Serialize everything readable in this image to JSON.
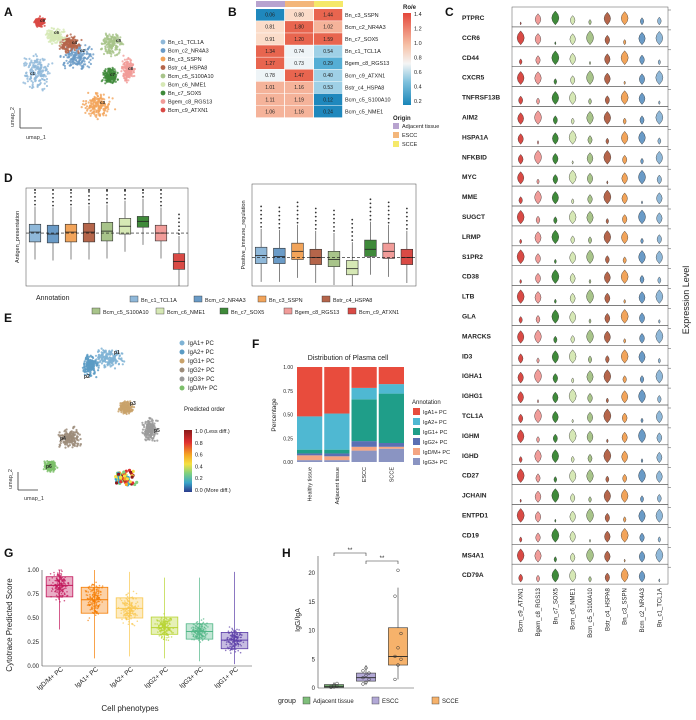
{
  "panels": {
    "A": {
      "letter": "A",
      "axis_x": "umap_1",
      "axis_y": "umap_2",
      "legend": [
        "Bn_c1_TCL1A",
        "Bcm_c2_NR4A3",
        "Bn_c3_SSPN",
        "Bstr_c4_HSPA8",
        "Bcm_c5_S100A10",
        "Bcm_c6_NME1",
        "Bn_c7_SOX5",
        "Bgem_c8_RGS13",
        "Bcm_c9_ATXN1"
      ],
      "legend_colors": [
        "#8fb8d9",
        "#6a9bc7",
        "#f2a45a",
        "#b5654a",
        "#a8c48a",
        "#d6e8b5",
        "#3f8a3a",
        "#f19c99",
        "#d94a45"
      ],
      "cluster_labels": [
        "c1",
        "c2",
        "c3",
        "c4",
        "c5",
        "c6",
        "c7",
        "c8",
        "c9"
      ]
    },
    "B": {
      "letter": "B",
      "rows": [
        {
          "label": "Bn_c3_SSPN",
          "values": [
            "0.06",
            "0.80",
            "1.44"
          ]
        },
        {
          "label": "Bcm_c2_NR4A3",
          "values": [
            "0.81",
            "1.80",
            "1.02"
          ]
        },
        {
          "label": "Bn_c7_SOX5",
          "values": [
            "0.91",
            "1.20",
            "1.59"
          ]
        },
        {
          "label": "Bn_c1_TCL1A",
          "values": [
            "1.34",
            "0.74",
            "0.54"
          ]
        },
        {
          "label": "Bgem_c8_RGS13",
          "values": [
            "1.27",
            "0.73",
            "0.29"
          ]
        },
        {
          "label": "Bcm_c9_ATXN1",
          "values": [
            "0.78",
            "1.47",
            "0.40"
          ]
        },
        {
          "label": "Bstr_c4_HSPA8",
          "values": [
            "1.01",
            "1.16",
            "0.53"
          ]
        },
        {
          "label": "Bcm_c5_S100A10",
          "values": [
            "1.11",
            "1.19",
            "0.12"
          ]
        },
        {
          "label": "Bcm_c5_NME1",
          "values": [
            "1.06",
            "1.16",
            "0.24"
          ]
        }
      ],
      "origin_colors": [
        "#b8a3cf",
        "#f3b67a",
        "#f5e96a"
      ],
      "legend_title_1": "Ro/e",
      "legend_ticks": [
        "1.4",
        "1.2",
        "1.0",
        "0.8",
        "0.6",
        "0.4",
        "0.2"
      ],
      "legend_title_2": "Origin",
      "legend_title_3": "Origin",
      "origin_legend": [
        "Adjacent tissue",
        "ESCC",
        "SCCE"
      ]
    },
    "C": {
      "letter": "C",
      "genes": [
        "PTPRC",
        "CCR6",
        "CD44",
        "CXCR5",
        "TNFRSF13B",
        "AIM2",
        "HSPA1A",
        "NFKBID",
        "MYC",
        "MME",
        "SUGCT",
        "LRMP",
        "S1PR2",
        "CD38",
        "LTB",
        "GLA",
        "MARCKS",
        "ID3",
        "IGHA1",
        "IGHG1",
        "TCL1A",
        "IGHM",
        "IGHD",
        "CD27",
        "JCHAIN",
        "ENTPD1",
        "CD19",
        "MS4A1",
        "CD79A"
      ],
      "clusters": [
        "Bcm_c9_ATXN1",
        "Bgem_c8_RGS13",
        "Bn_c7_SOX5",
        "Bcm_c6_NME1",
        "Bcm_c5_S100A10",
        "Bstr_c4_HSPA8",
        "Bn_c3_SSPN",
        "Bcm_c2_NR4A3",
        "Bn_c1_TCL1A"
      ],
      "cluster_colors": [
        "#d94a45",
        "#f19c99",
        "#3f8a3a",
        "#d6e8b5",
        "#a8c48a",
        "#b5654a",
        "#f2a45a",
        "#6a9bc7",
        "#8fb8d9"
      ],
      "ylabel": "Expression Level"
    },
    "D": {
      "letter": "D",
      "left_ylabel": "Antigen_presentation",
      "right_ylabel": "Positive_immune_regulation",
      "xlabel": "Annotation",
      "legend_row1": [
        "Bn_c1_TCL1A",
        "Bcm_c2_NR4A3",
        "Bn_c3_SSPN",
        "Bstr_c4_HSPA8"
      ],
      "legend_row2": [
        "Bcm_c5_S100A10",
        "Bcm_c6_NME1",
        "Bn_c7_SOX5",
        "Bgem_c8_RGS13",
        "Bcm_c9_ATXN1"
      ]
    },
    "E": {
      "letter": "E",
      "legend": [
        "IgA1+ PC",
        "IgA2+ PC",
        "IgG1+ PC",
        "IgG2+ PC",
        "IgG3+ PC",
        "IgD/M+ PC"
      ],
      "legend_colors": [
        "#7fb3d5",
        "#5a9bc4",
        "#c9a26a",
        "#9c8c7a",
        "#9a9a9a",
        "#7cbf6a"
      ],
      "cluster_labels": [
        "p1",
        "p2",
        "p3",
        "p4",
        "p5",
        "p6"
      ],
      "axis_x": "umap_1",
      "axis_y": "umap_2",
      "cbar_title": "Predicted order",
      "cbar_labels": [
        "1.0 (Less diff.)",
        "0.8",
        "0.6",
        "0.4",
        "0.2",
        "0.0 (More diff.)"
      ]
    },
    "F": {
      "letter": "F",
      "title": "Distribution of Plasma cell",
      "ylabel": "Percentage",
      "yticks": [
        "1.00",
        "0.75",
        "0.50",
        "0.25",
        "0.00"
      ],
      "categories": [
        "Healthy tissue",
        "Adjacent tissue",
        "ESCC",
        "SCCE"
      ],
      "legend_title": "Annotation",
      "legend": [
        "IgA1+ PC",
        "IgA2+ PC",
        "IgG1+ PC",
        "IgG2+ PC",
        "IgD/M+ PC",
        "IgG3+ PC"
      ],
      "legend_colors": [
        "#e84c3d",
        "#4fb8d2",
        "#1f9e89",
        "#5a6fb3",
        "#f4a582",
        "#8a94c2"
      ]
    },
    "G": {
      "letter": "G",
      "ylabel": "Cytotrace Predicted Score",
      "xlabel": "Cell phenotypes",
      "yticks": [
        "1.00",
        "0.75",
        "0.50",
        "0.25",
        "0.00"
      ],
      "categories": [
        "IgD/M+ PC",
        "IgA1+ PC",
        "IgA2+ PC",
        "IgG2+ PC",
        "IgG3+ PC",
        "IgG1+ PC"
      ],
      "colors": [
        "#c2185b",
        "#f57c00",
        "#f9c74f",
        "#b8d432",
        "#52b788",
        "#5c3ea8"
      ]
    },
    "H": {
      "letter": "H",
      "ylabel": "IgG/IgA",
      "yticks": [
        "20",
        "15",
        "10",
        "5",
        "0"
      ],
      "sig1": "**",
      "sig2": "**",
      "legend_title": "group",
      "legend": [
        "Adjacent tissue",
        "ESCC",
        "SCCE"
      ],
      "legend_colors": [
        "#7fbf7b",
        "#b2a8d6",
        "#f6b26b"
      ]
    }
  },
  "chart_data": [
    {
      "type": "bar",
      "title": "Distribution of Plasma cell",
      "xlabel": "",
      "ylabel": "Percentage",
      "categories": [
        "Healthy tissue",
        "Adjacent tissue",
        "ESCC",
        "SCCE"
      ],
      "ylim": [
        0,
        1
      ],
      "stacked": true,
      "series": [
        {
          "name": "IgG3+ PC",
          "values": [
            0.02,
            0.02,
            0.12,
            0.14
          ]
        },
        {
          "name": "IgD/M+ PC",
          "values": [
            0.05,
            0.04,
            0.04,
            0.02
          ]
        },
        {
          "name": "IgG2+ PC",
          "values": [
            0.02,
            0.03,
            0.06,
            0.04
          ]
        },
        {
          "name": "IgG1+ PC",
          "values": [
            0.04,
            0.04,
            0.44,
            0.52
          ]
        },
        {
          "name": "IgA2+ PC",
          "values": [
            0.35,
            0.38,
            0.12,
            0.1
          ]
        },
        {
          "name": "IgA1+ PC",
          "values": [
            0.52,
            0.49,
            0.22,
            0.18
          ]
        }
      ]
    },
    {
      "type": "box",
      "title": "",
      "xlabel": "Cell phenotypes",
      "ylabel": "Cytotrace Predicted Score",
      "categories": [
        "IgD/M+ PC",
        "IgA1+ PC",
        "IgA2+ PC",
        "IgG2+ PC",
        "IgG3+ PC",
        "IgG1+ PC"
      ],
      "ylim": [
        0,
        1
      ],
      "q1": [
        0.72,
        0.55,
        0.5,
        0.33,
        0.28,
        0.18
      ],
      "median": [
        0.84,
        0.69,
        0.6,
        0.4,
        0.36,
        0.27
      ],
      "q3": [
        0.93,
        0.82,
        0.71,
        0.51,
        0.44,
        0.35
      ],
      "min": [
        0.38,
        0.08,
        0.1,
        0.08,
        0.05,
        0.02
      ],
      "max": [
        1.0,
        1.0,
        0.98,
        0.92,
        0.92,
        0.98
      ]
    },
    {
      "type": "box",
      "title": "",
      "xlabel": "group",
      "ylabel": "IgG/IgA",
      "categories": [
        "Adjacent tissue",
        "ESCC",
        "SCCE"
      ],
      "ylim": [
        0,
        23
      ],
      "q1": [
        0.1,
        1.2,
        4.0
      ],
      "median": [
        0.3,
        1.8,
        5.5
      ],
      "q3": [
        0.6,
        2.6,
        10.5
      ],
      "min": [
        0.0,
        0.5,
        1.5
      ],
      "max": [
        1.0,
        4.0,
        17.5
      ],
      "points": [
        [
          0.1,
          0.2,
          0.3,
          0.3,
          0.5,
          0.8
        ],
        [
          0.7,
          1.0,
          1.5,
          1.8,
          2.2,
          2.6,
          3.0,
          3.5
        ],
        [
          1.5,
          4.0,
          5.0,
          5.5,
          7.0,
          9.5,
          16.0,
          20.5
        ]
      ]
    },
    {
      "type": "box",
      "title": "",
      "xlabel": "Annotation",
      "ylabel": "Antigen_presentation",
      "categories": [
        "Bn_c1_TCL1A",
        "Bcm_c2_NR4A3",
        "Bn_c3_SSPN",
        "Bstr_c4_HSPA8",
        "Bcm_c5_S100A10",
        "Bcm_c6_NME1",
        "Bn_c7_SOX5",
        "Bgem_c8_RGS13",
        "Bcm_c9_ATXN1"
      ],
      "median": [
        0.55,
        0.53,
        0.55,
        0.55,
        0.56,
        0.61,
        0.66,
        0.54,
        0.25
      ],
      "q1": [
        0.45,
        0.44,
        0.45,
        0.45,
        0.46,
        0.53,
        0.6,
        0.46,
        0.17
      ],
      "q3": [
        0.63,
        0.62,
        0.63,
        0.64,
        0.65,
        0.69,
        0.71,
        0.62,
        0.33
      ]
    },
    {
      "type": "box",
      "title": "",
      "xlabel": "Annotation",
      "ylabel": "Positive_immune_regulation",
      "categories": [
        "Bn_c1_TCL1A",
        "Bcm_c2_NR4A3",
        "Bn_c3_SSPN",
        "Bstr_c4_HSPA8",
        "Bcm_c5_S100A10",
        "Bcm_c6_NME1",
        "Bn_c7_SOX5",
        "Bgem_c8_RGS13",
        "Bcm_c9_ATXN1"
      ],
      "median": [
        0.3,
        0.29,
        0.34,
        0.28,
        0.26,
        0.17,
        0.36,
        0.34,
        0.28
      ],
      "q1": [
        0.22,
        0.22,
        0.26,
        0.21,
        0.19,
        0.11,
        0.29,
        0.27,
        0.21
      ],
      "q3": [
        0.38,
        0.37,
        0.42,
        0.36,
        0.34,
        0.25,
        0.45,
        0.42,
        0.36
      ]
    }
  ]
}
